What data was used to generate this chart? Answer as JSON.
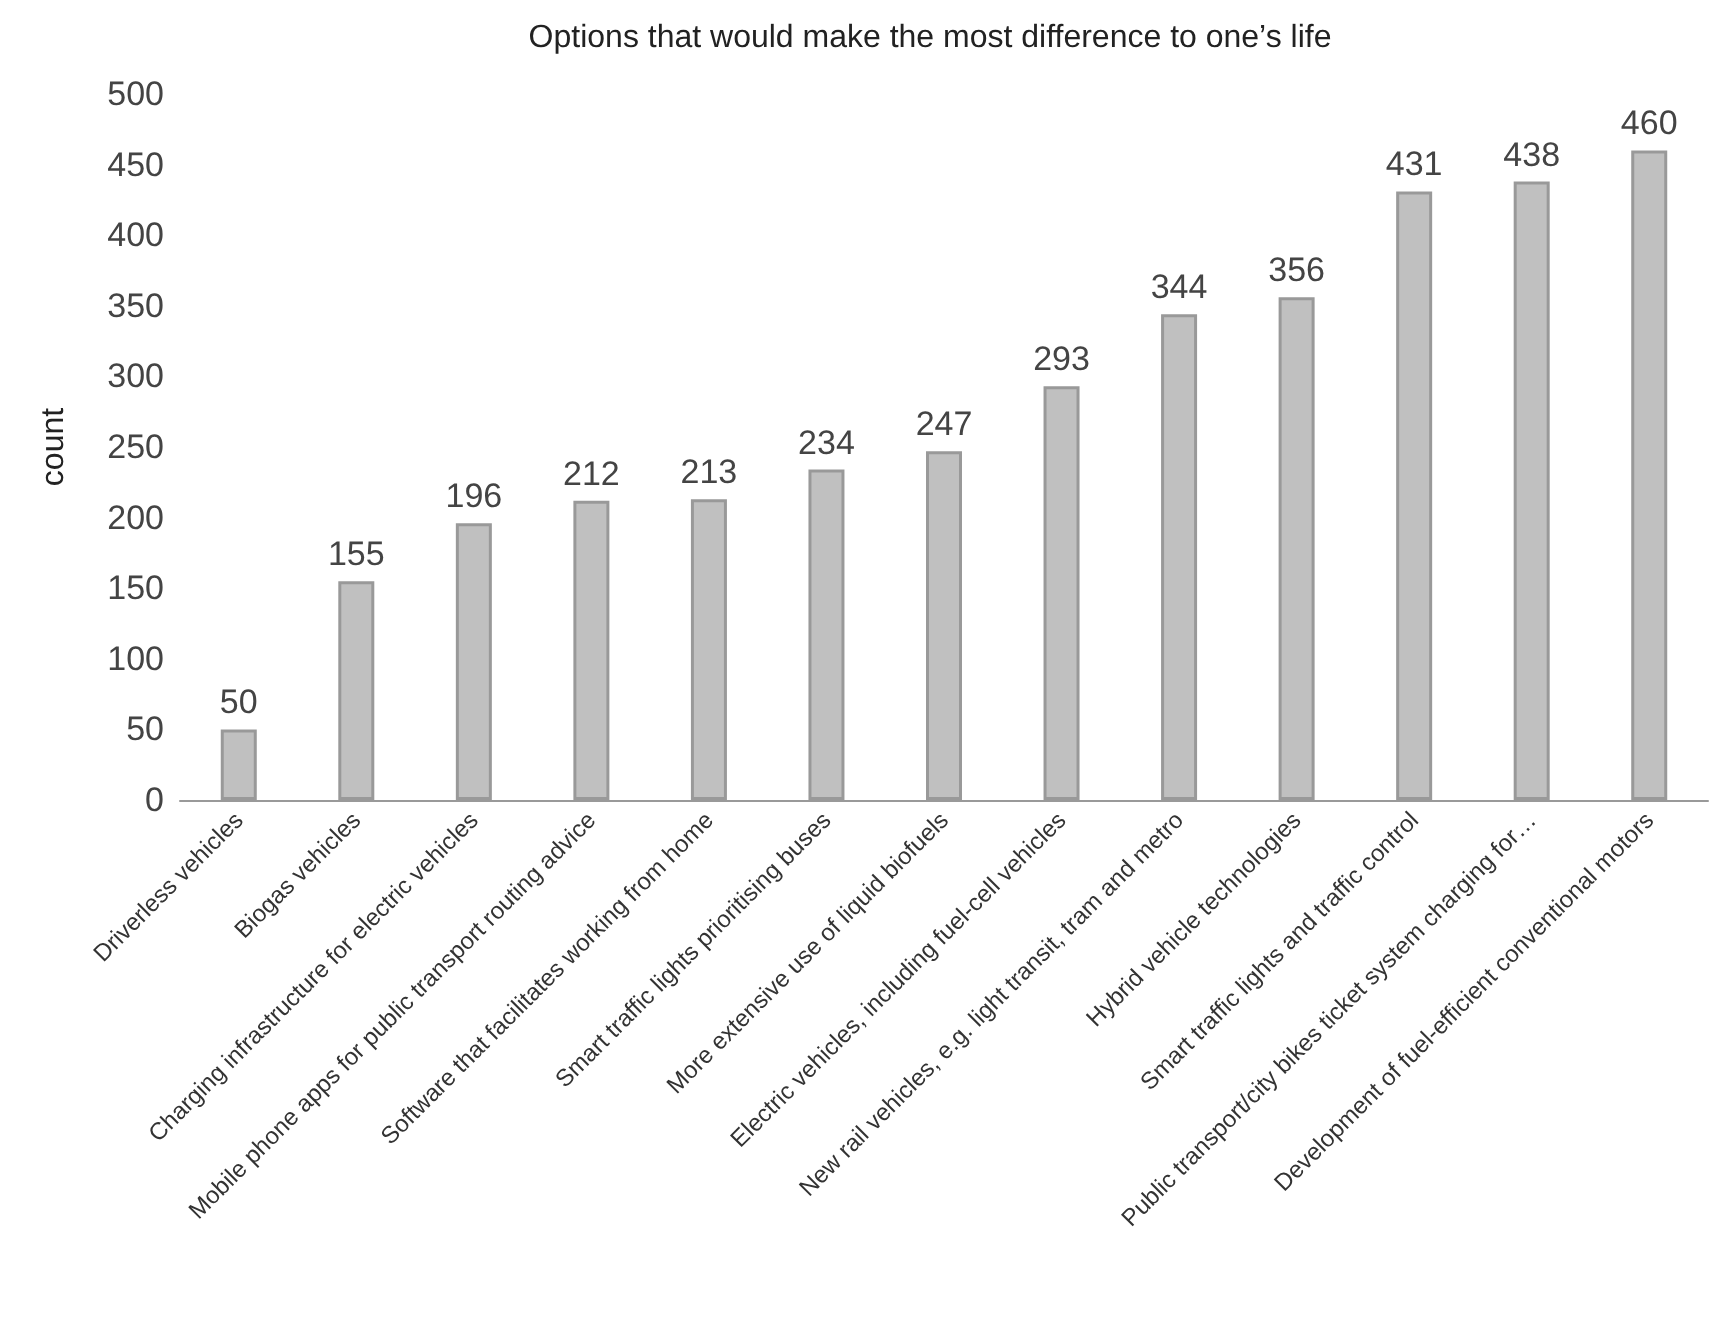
{
  "chart_data": {
    "type": "bar",
    "title": "Options that would make the most difference to one’s life",
    "ylabel": "count",
    "categories": [
      "Driverless vehicles",
      "Biogas vehicles",
      "Charging infrastructure for electric vehicles",
      "Mobile phone apps for public transport routing advice",
      "Software that facilitates working from home",
      "Smart traffic lights prioritising buses",
      "More extensive use of liquid biofuels",
      "Electric vehicles, including fuel-cell vehicles",
      "New rail vehicles, e.g. light transit, tram and metro",
      "Hybrid vehicle technologies",
      "Smart traffic lights and traffic control",
      "Public transport/city bikes ticket system charging for…",
      "Development of fuel-efficient conventional motors"
    ],
    "values": [
      50,
      155,
      196,
      212,
      213,
      234,
      247,
      293,
      344,
      356,
      431,
      438,
      460
    ],
    "color": "#c0c0c0",
    "ylim": [
      0,
      500
    ],
    "yticks": [
      0,
      50,
      100,
      150,
      200,
      250,
      300,
      350,
      400,
      450,
      500
    ],
    "data_labels": true,
    "grid": false
  }
}
